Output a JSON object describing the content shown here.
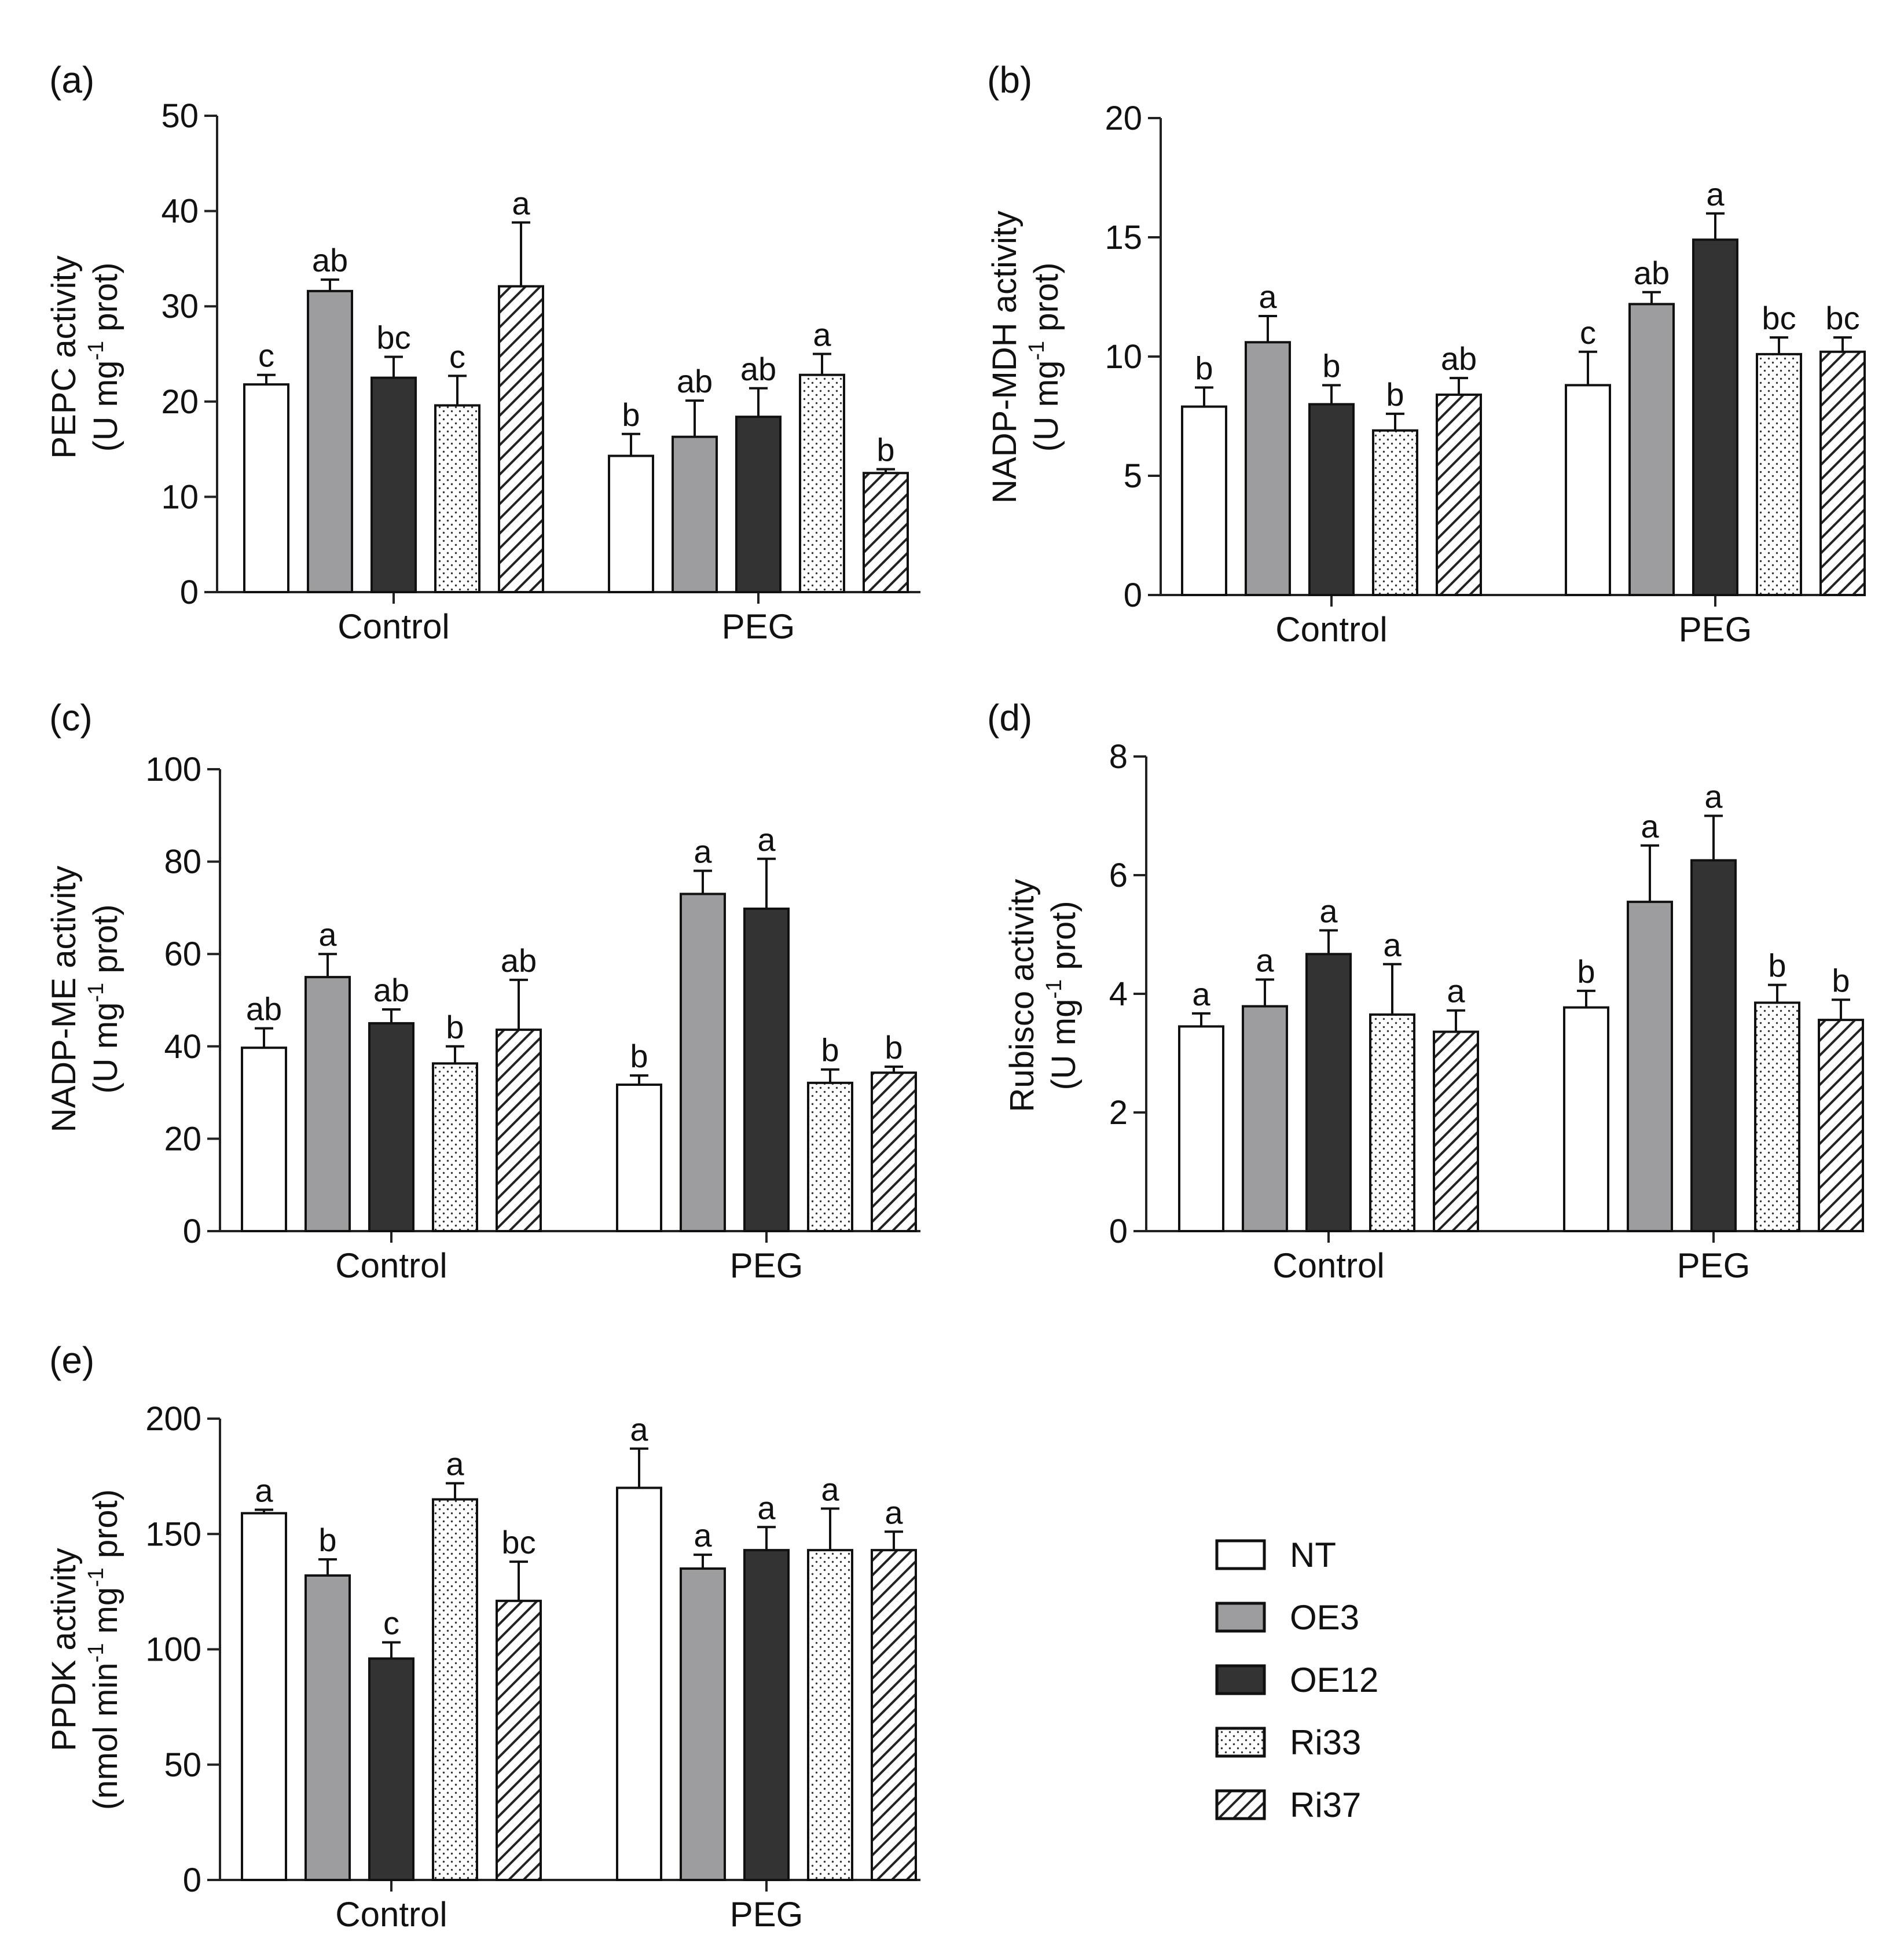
{
  "series_names": [
    "NT",
    "OE3",
    "OE12",
    "Ri33",
    "Ri37"
  ],
  "series_styles": [
    {
      "fill": "#ffffff",
      "pattern": "none"
    },
    {
      "fill": "#9d9da0",
      "pattern": "none"
    },
    {
      "fill": "#333333",
      "pattern": "none"
    },
    {
      "fill": "#ffffff",
      "pattern": "dots"
    },
    {
      "fill": "#ffffff",
      "pattern": "hatch"
    }
  ],
  "colors": {
    "axis": "#222222",
    "bar_edge": "#111111",
    "text": "#111111"
  },
  "legend": {
    "position": "bottom-right",
    "entries": [
      "NT",
      "OE3",
      "OE12",
      "Ri33",
      "Ri37"
    ]
  },
  "chart_data": [
    {
      "type": "bar",
      "panel_label": "(a)",
      "title": "",
      "xlabel": "",
      "ylabel": "PEPC activity",
      "ylabel_unit": {
        "pre": "(U mg",
        "sup": "-1",
        "post": " prot)"
      },
      "ylim": [
        0,
        50
      ],
      "yticks": [
        0,
        10,
        20,
        30,
        40,
        50
      ],
      "categories": [
        "Control",
        "PEG"
      ],
      "series": [
        {
          "name": "NT",
          "values": [
            21.8,
            14.3
          ],
          "errors": [
            1.0,
            2.3
          ],
          "letters": [
            "c",
            "b"
          ]
        },
        {
          "name": "OE3",
          "values": [
            31.6,
            16.3
          ],
          "errors": [
            1.2,
            3.8
          ],
          "letters": [
            "ab",
            "ab"
          ]
        },
        {
          "name": "OE12",
          "values": [
            22.5,
            18.4
          ],
          "errors": [
            2.2,
            3.0
          ],
          "letters": [
            "bc",
            "ab"
          ]
        },
        {
          "name": "Ri33",
          "values": [
            19.6,
            22.8
          ],
          "errors": [
            3.1,
            2.2
          ],
          "letters": [
            "c",
            "a"
          ]
        },
        {
          "name": "Ri37",
          "values": [
            32.1,
            12.5
          ],
          "errors": [
            6.7,
            0.4
          ],
          "letters": [
            "a",
            "b"
          ]
        }
      ]
    },
    {
      "type": "bar",
      "panel_label": "(b)",
      "title": "",
      "xlabel": "",
      "ylabel": "NADP-MDH activity",
      "ylabel_unit": {
        "pre": "(U mg",
        "sup": "-1",
        "post": " prot)"
      },
      "ylim": [
        0,
        20
      ],
      "yticks": [
        0,
        5,
        10,
        15,
        20
      ],
      "categories": [
        "Control",
        "PEG"
      ],
      "series": [
        {
          "name": "NT",
          "values": [
            7.9,
            8.8
          ],
          "errors": [
            0.8,
            1.4
          ],
          "letters": [
            "b",
            "c"
          ]
        },
        {
          "name": "OE3",
          "values": [
            10.6,
            12.2
          ],
          "errors": [
            1.1,
            0.5
          ],
          "letters": [
            "a",
            "ab"
          ]
        },
        {
          "name": "OE12",
          "values": [
            8.0,
            14.9
          ],
          "errors": [
            0.8,
            1.1
          ],
          "letters": [
            "b",
            "a"
          ]
        },
        {
          "name": "Ri33",
          "values": [
            6.9,
            10.1
          ],
          "errors": [
            0.7,
            0.7
          ],
          "letters": [
            "b",
            "bc"
          ]
        },
        {
          "name": "Ri37",
          "values": [
            8.4,
            10.2
          ],
          "errors": [
            0.7,
            0.6
          ],
          "letters": [
            "ab",
            "bc"
          ]
        }
      ]
    },
    {
      "type": "bar",
      "panel_label": "(c)",
      "title": "",
      "xlabel": "",
      "ylabel": "NADP-ME activity",
      "ylabel_unit": {
        "pre": "(U mg",
        "sup": "-1",
        "post": " prot)"
      },
      "ylim": [
        0,
        100
      ],
      "yticks": [
        0,
        20,
        40,
        60,
        80,
        100
      ],
      "categories": [
        "Control",
        "PEG"
      ],
      "series": [
        {
          "name": "NT",
          "values": [
            39.7,
            31.7
          ],
          "errors": [
            4.2,
            2.0
          ],
          "letters": [
            "ab",
            "b"
          ]
        },
        {
          "name": "OE3",
          "values": [
            55.0,
            73.0
          ],
          "errors": [
            5.0,
            5.0
          ],
          "letters": [
            "a",
            "a"
          ]
        },
        {
          "name": "OE12",
          "values": [
            45.0,
            69.8
          ],
          "errors": [
            3.0,
            10.8
          ],
          "letters": [
            "ab",
            "a"
          ]
        },
        {
          "name": "Ri33",
          "values": [
            36.3,
            32.1
          ],
          "errors": [
            3.7,
            2.9
          ],
          "letters": [
            "b",
            "b"
          ]
        },
        {
          "name": "Ri37",
          "values": [
            43.6,
            34.3
          ],
          "errors": [
            10.8,
            1.3
          ],
          "letters": [
            "ab",
            "b"
          ]
        }
      ]
    },
    {
      "type": "bar",
      "panel_label": "(d)",
      "title": "",
      "xlabel": "",
      "ylabel": "Rubisco activity",
      "ylabel_unit": {
        "pre": "(U mg",
        "sup": "-1",
        "post": " prot)"
      },
      "ylim": [
        0,
        8
      ],
      "yticks": [
        0,
        2,
        4,
        6,
        8
      ],
      "categories": [
        "Control",
        "PEG"
      ],
      "series": [
        {
          "name": "NT",
          "values": [
            3.45,
            3.77
          ],
          "errors": [
            0.22,
            0.28
          ],
          "letters": [
            "a",
            "b"
          ]
        },
        {
          "name": "OE3",
          "values": [
            3.79,
            5.55
          ],
          "errors": [
            0.45,
            0.95
          ],
          "letters": [
            "a",
            "a"
          ]
        },
        {
          "name": "OE12",
          "values": [
            4.67,
            6.25
          ],
          "errors": [
            0.4,
            0.75
          ],
          "letters": [
            "a",
            "a"
          ]
        },
        {
          "name": "Ri33",
          "values": [
            3.65,
            3.85
          ],
          "errors": [
            0.85,
            0.3
          ],
          "letters": [
            "a",
            "b"
          ]
        },
        {
          "name": "Ri37",
          "values": [
            3.36,
            3.56
          ],
          "errors": [
            0.36,
            0.34
          ],
          "letters": [
            "a",
            "b"
          ]
        }
      ]
    },
    {
      "type": "bar",
      "panel_label": "(e)",
      "title": "",
      "xlabel": "",
      "ylabel": "PPDK activity",
      "ylabel_unit": {
        "pre": "(nmol min",
        "sup": "-1",
        "mid": " mg",
        "sup2": "-1",
        "post": " prot)"
      },
      "ylim": [
        0,
        200
      ],
      "yticks": [
        0,
        50,
        100,
        150,
        200
      ],
      "categories": [
        "Control",
        "PEG"
      ],
      "series": [
        {
          "name": "NT",
          "values": [
            159,
            170
          ],
          "errors": [
            1.5,
            17
          ],
          "letters": [
            "a",
            "a"
          ]
        },
        {
          "name": "OE3",
          "values": [
            132,
            135
          ],
          "errors": [
            7,
            6
          ],
          "letters": [
            "b",
            "a"
          ]
        },
        {
          "name": "OE12",
          "values": [
            96,
            143
          ],
          "errors": [
            7,
            10
          ],
          "letters": [
            "c",
            "a"
          ]
        },
        {
          "name": "Ri33",
          "values": [
            165,
            143
          ],
          "errors": [
            7,
            18
          ],
          "letters": [
            "a",
            "a"
          ]
        },
        {
          "name": "Ri37",
          "values": [
            121,
            143
          ],
          "errors": [
            17,
            8
          ],
          "letters": [
            "bc",
            "a"
          ]
        }
      ]
    }
  ]
}
